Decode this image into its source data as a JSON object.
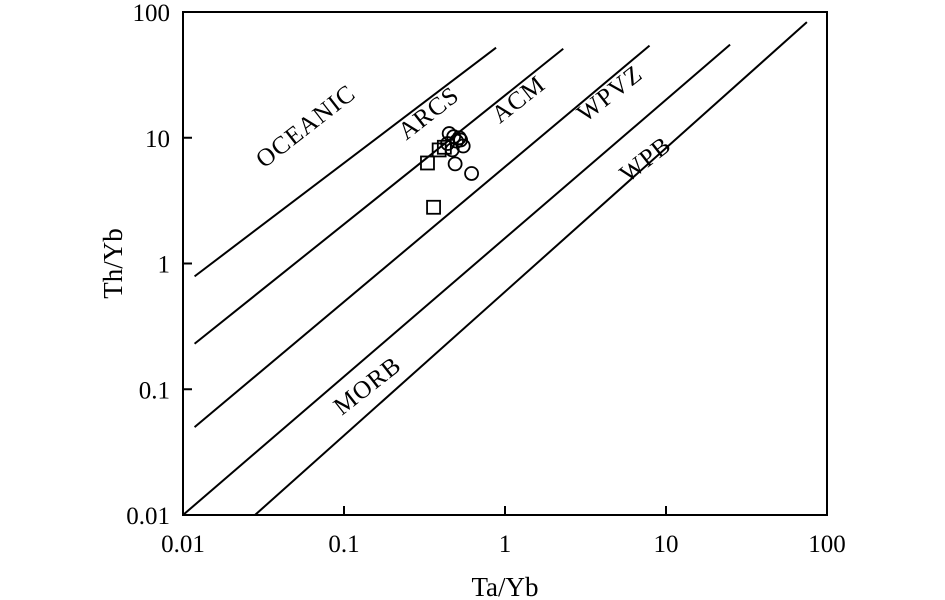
{
  "chart_data": {
    "type": "scatter",
    "title": "",
    "xlabel": "Ta/Yb",
    "ylabel": "Th/Yb",
    "xscale": "log",
    "yscale": "log",
    "xlim": [
      0.01,
      100
    ],
    "ylim": [
      0.01,
      100
    ],
    "x_ticks": [
      {
        "value": 0.01,
        "label": "0.01"
      },
      {
        "value": 0.1,
        "label": "0.1"
      },
      {
        "value": 1,
        "label": "1"
      },
      {
        "value": 10,
        "label": "10"
      },
      {
        "value": 100,
        "label": "100"
      }
    ],
    "y_ticks": [
      {
        "value": 0.01,
        "label": "0.01"
      },
      {
        "value": 0.1,
        "label": "0.1"
      },
      {
        "value": 1,
        "label": "1"
      },
      {
        "value": 10,
        "label": "10"
      },
      {
        "value": 100,
        "label": "100"
      }
    ],
    "boundary_lines": [
      {
        "from": [
          0.0118,
          0.79
        ],
        "to": [
          0.88,
          52
        ]
      },
      {
        "from": [
          0.0118,
          0.23
        ],
        "to": [
          2.3,
          51
        ]
      },
      {
        "from": [
          0.0118,
          0.05
        ],
        "to": [
          7.9,
          54
        ]
      },
      {
        "from": [
          0.01,
          0.01
        ],
        "to": [
          25,
          55
        ]
      },
      {
        "from": [
          0.028,
          0.01
        ],
        "to": [
          75,
          83
        ]
      }
    ],
    "region_labels": [
      {
        "text": "OCEANIC",
        "at": [
          0.062,
          11.0
        ]
      },
      {
        "text": "ARCS",
        "at": [
          0.36,
          14.0
        ]
      },
      {
        "text": "ACM",
        "at": [
          1.3,
          18.0
        ]
      },
      {
        "text": "WPVZ",
        "at": [
          4.8,
          20.0
        ]
      },
      {
        "text": "WPB",
        "at": [
          8.0,
          6.0
        ]
      },
      {
        "text": "MORB",
        "at": [
          0.15,
          0.095
        ]
      }
    ],
    "series": [
      {
        "marker": "circle",
        "points": [
          [
            0.45,
            10.8
          ],
          [
            0.48,
            10.2
          ],
          [
            0.52,
            10.0
          ],
          [
            0.5,
            9.4
          ],
          [
            0.55,
            8.6
          ],
          [
            0.47,
            8.0
          ],
          [
            0.49,
            6.2
          ],
          [
            0.62,
            5.2
          ],
          [
            0.44,
            9.0
          ],
          [
            0.53,
            9.6
          ]
        ]
      },
      {
        "marker": "square",
        "points": [
          [
            0.39,
            8.0
          ],
          [
            0.33,
            6.3
          ],
          [
            0.36,
            2.8
          ],
          [
            0.42,
            8.4
          ]
        ]
      }
    ],
    "grid": false,
    "legend": "none"
  }
}
